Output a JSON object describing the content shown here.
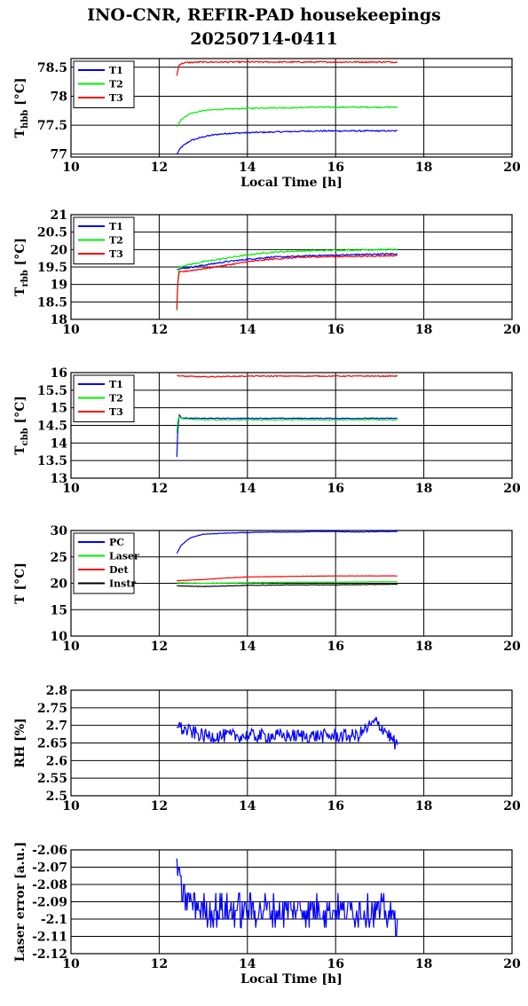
{
  "title_line1": "INO-CNR, REFIR-PAD housekeepings",
  "title_line2": "20250714-0411",
  "chart_data": [
    {
      "type": "line",
      "ylabel_main": "T",
      "ylabel_sub": "hbb",
      "ylabel_unit": " [°C]",
      "xlabel": "Local Time [h]",
      "xlim": [
        10,
        20
      ],
      "xticks": [
        10,
        12,
        14,
        16,
        18,
        20
      ],
      "ylim": [
        76.95,
        78.65
      ],
      "yticks": [
        77,
        77.5,
        78,
        78.5
      ],
      "ytick_labels": [
        "77",
        "77.5",
        "78",
        "78.5"
      ],
      "legend_position": "top-left",
      "series": [
        {
          "name": "T1",
          "color": "#0000ff",
          "x": [
            12.4,
            12.5,
            12.7,
            13.0,
            13.3,
            13.6,
            14.0,
            14.5,
            15.0,
            15.5,
            16.0,
            16.5,
            17.0,
            17.4
          ],
          "values": [
            77.0,
            77.12,
            77.23,
            77.3,
            77.34,
            77.36,
            77.37,
            77.38,
            77.39,
            77.4,
            77.4,
            77.4,
            77.4,
            77.4
          ],
          "noise": 0.012
        },
        {
          "name": "T2",
          "color": "#00ee00",
          "x": [
            12.4,
            12.5,
            12.7,
            13.0,
            13.3,
            13.6,
            14.0,
            14.5,
            15.0,
            15.5,
            16.0,
            16.5,
            17.0,
            17.4
          ],
          "values": [
            77.48,
            77.6,
            77.7,
            77.75,
            77.77,
            77.78,
            77.79,
            77.8,
            77.8,
            77.81,
            77.81,
            77.81,
            77.81,
            77.81
          ],
          "noise": 0.01
        },
        {
          "name": "T3",
          "color": "#ff0000",
          "x": [
            12.4,
            12.45,
            12.6,
            13.0,
            14.0,
            15.0,
            16.0,
            17.0,
            17.4
          ],
          "values": [
            78.35,
            78.55,
            78.58,
            78.59,
            78.59,
            78.59,
            78.59,
            78.59,
            78.59
          ],
          "noise": 0.012
        }
      ]
    },
    {
      "type": "line",
      "ylabel_main": "T",
      "ylabel_sub": "rbb",
      "ylabel_unit": " [°C]",
      "xlabel": "",
      "xlim": [
        10,
        20
      ],
      "xticks": [
        10,
        12,
        14,
        16,
        18,
        20
      ],
      "ylim": [
        18,
        21
      ],
      "yticks": [
        18,
        18.5,
        19,
        19.5,
        20,
        20.5,
        21
      ],
      "ytick_labels": [
        "18",
        "18.5",
        "19",
        "19.5",
        "20",
        "20.5",
        "21"
      ],
      "legend_position": "top-left",
      "series": [
        {
          "name": "T1",
          "color": "#0000ff",
          "x": [
            12.4,
            12.45,
            12.6,
            13.0,
            13.5,
            14.0,
            14.5,
            15.0,
            15.5,
            16.0,
            16.5,
            17.0,
            17.4
          ],
          "values": [
            19.45,
            19.45,
            19.47,
            19.55,
            19.65,
            19.72,
            19.78,
            19.8,
            19.83,
            19.84,
            19.86,
            19.87,
            19.88
          ],
          "noise": 0.02
        },
        {
          "name": "T2",
          "color": "#00ee00",
          "x": [
            12.4,
            12.42,
            12.45,
            12.6,
            13.0,
            13.5,
            14.0,
            14.5,
            15.0,
            15.5,
            16.0,
            16.5,
            17.0,
            17.4
          ],
          "values": [
            18.25,
            19.0,
            19.5,
            19.55,
            19.65,
            19.75,
            19.85,
            19.92,
            19.95,
            19.97,
            19.98,
            19.99,
            20.0,
            20.0
          ],
          "noise": 0.02
        },
        {
          "name": "T3",
          "color": "#ff0000",
          "x": [
            12.4,
            12.42,
            12.45,
            12.6,
            13.0,
            13.5,
            14.0,
            14.5,
            15.0,
            15.5,
            16.0,
            16.5,
            17.0,
            17.4
          ],
          "values": [
            18.3,
            19.0,
            19.35,
            19.38,
            19.45,
            19.55,
            19.65,
            19.72,
            19.76,
            19.79,
            19.8,
            19.81,
            19.82,
            19.83
          ],
          "noise": 0.02
        }
      ]
    },
    {
      "type": "line",
      "ylabel_main": "T",
      "ylabel_sub": "cbb",
      "ylabel_unit": " [°C]",
      "xlabel": "",
      "xlim": [
        10,
        20
      ],
      "xticks": [
        10,
        12,
        14,
        16,
        18,
        20
      ],
      "ylim": [
        13,
        16
      ],
      "yticks": [
        13,
        13.5,
        14,
        14.5,
        15,
        15.5,
        16
      ],
      "ytick_labels": [
        "13",
        "13.5",
        "14",
        "14.5",
        "15",
        "15.5",
        "16"
      ],
      "legend_position": "top-left",
      "series": [
        {
          "name": "T1",
          "color": "#0000ff",
          "x": [
            12.4,
            12.42,
            12.45,
            12.5,
            12.7,
            13.0,
            14.0,
            15.0,
            16.0,
            17.0,
            17.4
          ],
          "values": [
            13.6,
            14.3,
            14.8,
            14.72,
            14.7,
            14.7,
            14.7,
            14.7,
            14.7,
            14.7,
            14.7
          ],
          "noise": 0.012
        },
        {
          "name": "T2",
          "color": "#00ee00",
          "x": [
            12.4,
            12.42,
            12.45,
            12.5,
            12.7,
            13.0,
            14.0,
            15.0,
            16.0,
            17.0,
            17.4
          ],
          "values": [
            14.3,
            14.6,
            14.75,
            14.7,
            14.67,
            14.66,
            14.66,
            14.66,
            14.66,
            14.66,
            14.66
          ],
          "noise": 0.012
        },
        {
          "name": "T3",
          "color": "#ff0000",
          "x": [
            12.4,
            12.5,
            13.0,
            14.0,
            15.0,
            16.0,
            17.0,
            17.4
          ],
          "values": [
            15.92,
            15.9,
            15.88,
            15.9,
            15.9,
            15.9,
            15.9,
            15.9
          ],
          "noise": 0.014
        }
      ]
    },
    {
      "type": "line",
      "ylabel_main": "T [°C]",
      "ylabel_sub": "",
      "ylabel_unit": "",
      "xlabel": "",
      "xlim": [
        10,
        20
      ],
      "xticks": [
        10,
        12,
        14,
        16,
        18,
        20
      ],
      "ylim": [
        10,
        30
      ],
      "yticks": [
        10,
        15,
        20,
        25,
        30
      ],
      "ytick_labels": [
        "10",
        "15",
        "20",
        "25",
        "30"
      ],
      "legend_position": "top-left",
      "series": [
        {
          "name": "PC",
          "color": "#0000ff",
          "x": [
            12.4,
            12.5,
            12.7,
            13.0,
            13.5,
            14.0,
            14.5,
            15.0,
            15.5,
            16.0,
            16.5,
            17.0,
            17.4
          ],
          "values": [
            25.7,
            27.2,
            28.6,
            29.3,
            29.5,
            29.6,
            29.7,
            29.7,
            29.8,
            29.8,
            29.7,
            29.8,
            29.8
          ],
          "noise": 0.05
        },
        {
          "name": "Laser",
          "color": "#00ee00",
          "x": [
            12.4,
            13.0,
            14.0,
            15.0,
            16.0,
            17.0,
            17.4
          ],
          "values": [
            20.1,
            20.0,
            20.1,
            20.2,
            20.2,
            20.3,
            20.3
          ],
          "noise": 0.04
        },
        {
          "name": "Det",
          "color": "#ff0000",
          "x": [
            12.4,
            13.0,
            13.5,
            14.0,
            15.0,
            16.0,
            17.0,
            17.4
          ],
          "values": [
            20.5,
            20.7,
            21.0,
            21.2,
            21.3,
            21.4,
            21.4,
            21.4
          ],
          "noise": 0.03
        },
        {
          "name": "Instr",
          "color": "#000000",
          "x": [
            12.4,
            13.0,
            14.0,
            15.0,
            16.0,
            17.0,
            17.4
          ],
          "values": [
            19.5,
            19.4,
            19.6,
            19.7,
            19.7,
            19.8,
            19.8
          ],
          "noise": 0.05
        }
      ]
    },
    {
      "type": "line",
      "ylabel_main": "RH [%]",
      "ylabel_sub": "",
      "ylabel_unit": "",
      "xlabel": "",
      "xlim": [
        10,
        20
      ],
      "xticks": [
        10,
        12,
        14,
        16,
        18,
        20
      ],
      "ylim": [
        2.5,
        2.8
      ],
      "yticks": [
        2.5,
        2.55,
        2.6,
        2.65,
        2.7,
        2.75,
        2.8
      ],
      "ytick_labels": [
        "2.5",
        "2.55",
        "2.6",
        "2.65",
        "2.7",
        "2.75",
        "2.8"
      ],
      "legend_position": "none",
      "series": [
        {
          "name": "",
          "color": "#0000ff",
          "x": [
            12.4,
            12.5,
            13.0,
            14.0,
            15.0,
            16.0,
            16.5,
            16.9,
            17.1,
            17.4
          ],
          "values": [
            2.71,
            2.69,
            2.67,
            2.67,
            2.67,
            2.67,
            2.67,
            2.71,
            2.69,
            2.64
          ],
          "noise": 0.02
        }
      ]
    },
    {
      "type": "line",
      "ylabel_main": "Laser error [a.u.]",
      "ylabel_sub": "",
      "ylabel_unit": "",
      "xlabel": "Local Time [h]",
      "xlim": [
        10,
        20
      ],
      "xticks": [
        10,
        12,
        14,
        16,
        18,
        20
      ],
      "ylim": [
        -2.12,
        -2.06
      ],
      "yticks": [
        -2.12,
        -2.11,
        -2.1,
        -2.09,
        -2.08,
        -2.07,
        -2.06
      ],
      "ytick_labels": [
        "-2.12",
        "-2.11",
        "-2.1",
        "-2.09",
        "-2.08",
        "-2.07",
        "-2.06"
      ],
      "legend_position": "none",
      "series": [
        {
          "name": "",
          "color": "#0000ff",
          "x": [
            12.4,
            12.5,
            13.0,
            14.0,
            15.0,
            16.0,
            17.0,
            17.4
          ],
          "values": [
            -2.065,
            -2.085,
            -2.095,
            -2.095,
            -2.095,
            -2.095,
            -2.095,
            -2.1
          ],
          "noise": 0.009,
          "step": 0.005
        }
      ]
    }
  ]
}
